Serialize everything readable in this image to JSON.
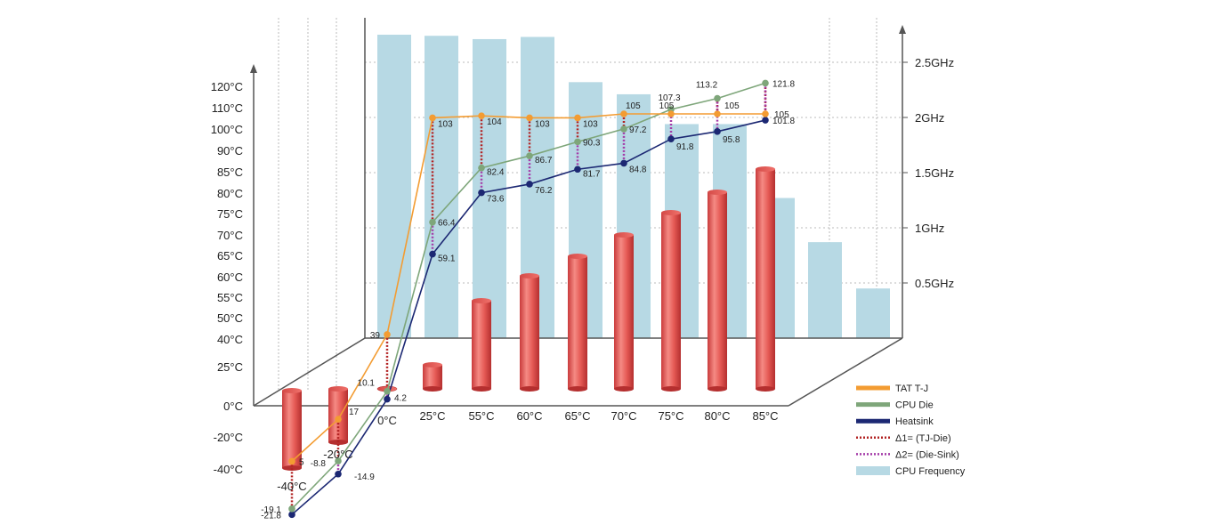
{
  "chart_data": {
    "type": "bar",
    "categories": [
      "-40°C",
      "-20°C",
      "0°C",
      "25°C",
      "55°C",
      "60°C",
      "65°C",
      "70°C",
      "75°C",
      "80°C",
      "85°C"
    ],
    "y_left_ticks": [
      "120°C",
      "110°C",
      "100°C",
      "90°C",
      "85°C",
      "80°C",
      "75°C",
      "70°C",
      "65°C",
      "60°C",
      "55°C",
      "50°C",
      "40°C",
      "25°C",
      "0°C",
      "-20°C",
      "-40°C"
    ],
    "y_right_ticks": [
      "2.5GHz",
      "2GHz",
      "1.5GHz",
      "1GHz",
      "0.5GHz"
    ],
    "ambient_cylinders": [
      -40,
      -20,
      0,
      25,
      55,
      60,
      65,
      70,
      75,
      80,
      85
    ],
    "frequency_ghz": [
      2.75,
      2.74,
      2.71,
      2.73,
      2.32,
      2.21,
      1.94,
      1.94,
      1.27,
      0.87,
      0.45
    ],
    "series": [
      {
        "name": "TAT T-J",
        "color": "#F39C32",
        "values": [
          5,
          17,
          39,
          103,
          104,
          103,
          103,
          105,
          105,
          105,
          105
        ]
      },
      {
        "name": "CPU Die",
        "color": "#7EA67A",
        "values": [
          -19.1,
          -8.8,
          10.1,
          66.4,
          82.4,
          86.7,
          90.3,
          97.2,
          107.3,
          113.2,
          121.8
        ]
      },
      {
        "name": "Heatsink",
        "color": "#1C2873",
        "values": [
          -21.8,
          -14.9,
          4.2,
          59.1,
          73.6,
          76.2,
          81.7,
          84.8,
          91.8,
          95.8,
          101.8
        ]
      }
    ],
    "legend": [
      {
        "label": "TAT T-J",
        "style": "line",
        "color": "#F39C32"
      },
      {
        "label": "CPU Die",
        "style": "line",
        "color": "#7EA67A"
      },
      {
        "label": "Heatsink",
        "style": "line",
        "color": "#1C2873"
      },
      {
        "label": "Δ1= (TJ-Die)",
        "style": "dotted",
        "color": "#B22222"
      },
      {
        "label": "Δ2= (Die-Sink)",
        "style": "dotted",
        "color": "#A43BA8"
      },
      {
        "label": "CPU Frequency",
        "style": "box",
        "color": "#B7D9E4"
      }
    ],
    "legend_position": "bottom-right"
  }
}
